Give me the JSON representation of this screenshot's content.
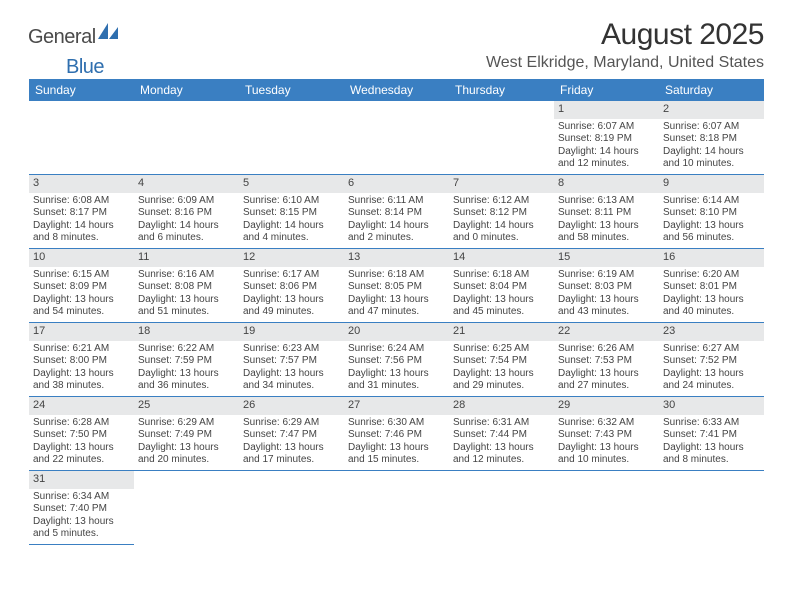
{
  "brand": {
    "part1": "General",
    "part2": "Blue"
  },
  "header": {
    "month_title": "August 2025",
    "location": "West Elkridge, Maryland, United States"
  },
  "palette": {
    "header_bg": "#3a7fc2",
    "header_text": "#ffffff",
    "daynum_bg": "#e7e8e9",
    "border": "#3a7fc2",
    "text": "#444444",
    "brand_gray": "#4a4a4a",
    "brand_blue": "#2f6faf"
  },
  "weekdays": [
    "Sunday",
    "Monday",
    "Tuesday",
    "Wednesday",
    "Thursday",
    "Friday",
    "Saturday"
  ],
  "calendar": {
    "type": "table",
    "columns": 7,
    "first_weekday_index": 5,
    "days": [
      {
        "n": 1,
        "sunrise": "6:07 AM",
        "sunset": "8:19 PM",
        "daylight": "14 hours and 12 minutes."
      },
      {
        "n": 2,
        "sunrise": "6:07 AM",
        "sunset": "8:18 PM",
        "daylight": "14 hours and 10 minutes."
      },
      {
        "n": 3,
        "sunrise": "6:08 AM",
        "sunset": "8:17 PM",
        "daylight": "14 hours and 8 minutes."
      },
      {
        "n": 4,
        "sunrise": "6:09 AM",
        "sunset": "8:16 PM",
        "daylight": "14 hours and 6 minutes."
      },
      {
        "n": 5,
        "sunrise": "6:10 AM",
        "sunset": "8:15 PM",
        "daylight": "14 hours and 4 minutes."
      },
      {
        "n": 6,
        "sunrise": "6:11 AM",
        "sunset": "8:14 PM",
        "daylight": "14 hours and 2 minutes."
      },
      {
        "n": 7,
        "sunrise": "6:12 AM",
        "sunset": "8:12 PM",
        "daylight": "14 hours and 0 minutes."
      },
      {
        "n": 8,
        "sunrise": "6:13 AM",
        "sunset": "8:11 PM",
        "daylight": "13 hours and 58 minutes."
      },
      {
        "n": 9,
        "sunrise": "6:14 AM",
        "sunset": "8:10 PM",
        "daylight": "13 hours and 56 minutes."
      },
      {
        "n": 10,
        "sunrise": "6:15 AM",
        "sunset": "8:09 PM",
        "daylight": "13 hours and 54 minutes."
      },
      {
        "n": 11,
        "sunrise": "6:16 AM",
        "sunset": "8:08 PM",
        "daylight": "13 hours and 51 minutes."
      },
      {
        "n": 12,
        "sunrise": "6:17 AM",
        "sunset": "8:06 PM",
        "daylight": "13 hours and 49 minutes."
      },
      {
        "n": 13,
        "sunrise": "6:18 AM",
        "sunset": "8:05 PM",
        "daylight": "13 hours and 47 minutes."
      },
      {
        "n": 14,
        "sunrise": "6:18 AM",
        "sunset": "8:04 PM",
        "daylight": "13 hours and 45 minutes."
      },
      {
        "n": 15,
        "sunrise": "6:19 AM",
        "sunset": "8:03 PM",
        "daylight": "13 hours and 43 minutes."
      },
      {
        "n": 16,
        "sunrise": "6:20 AM",
        "sunset": "8:01 PM",
        "daylight": "13 hours and 40 minutes."
      },
      {
        "n": 17,
        "sunrise": "6:21 AM",
        "sunset": "8:00 PM",
        "daylight": "13 hours and 38 minutes."
      },
      {
        "n": 18,
        "sunrise": "6:22 AM",
        "sunset": "7:59 PM",
        "daylight": "13 hours and 36 minutes."
      },
      {
        "n": 19,
        "sunrise": "6:23 AM",
        "sunset": "7:57 PM",
        "daylight": "13 hours and 34 minutes."
      },
      {
        "n": 20,
        "sunrise": "6:24 AM",
        "sunset": "7:56 PM",
        "daylight": "13 hours and 31 minutes."
      },
      {
        "n": 21,
        "sunrise": "6:25 AM",
        "sunset": "7:54 PM",
        "daylight": "13 hours and 29 minutes."
      },
      {
        "n": 22,
        "sunrise": "6:26 AM",
        "sunset": "7:53 PM",
        "daylight": "13 hours and 27 minutes."
      },
      {
        "n": 23,
        "sunrise": "6:27 AM",
        "sunset": "7:52 PM",
        "daylight": "13 hours and 24 minutes."
      },
      {
        "n": 24,
        "sunrise": "6:28 AM",
        "sunset": "7:50 PM",
        "daylight": "13 hours and 22 minutes."
      },
      {
        "n": 25,
        "sunrise": "6:29 AM",
        "sunset": "7:49 PM",
        "daylight": "13 hours and 20 minutes."
      },
      {
        "n": 26,
        "sunrise": "6:29 AM",
        "sunset": "7:47 PM",
        "daylight": "13 hours and 17 minutes."
      },
      {
        "n": 27,
        "sunrise": "6:30 AM",
        "sunset": "7:46 PM",
        "daylight": "13 hours and 15 minutes."
      },
      {
        "n": 28,
        "sunrise": "6:31 AM",
        "sunset": "7:44 PM",
        "daylight": "13 hours and 12 minutes."
      },
      {
        "n": 29,
        "sunrise": "6:32 AM",
        "sunset": "7:43 PM",
        "daylight": "13 hours and 10 minutes."
      },
      {
        "n": 30,
        "sunrise": "6:33 AM",
        "sunset": "7:41 PM",
        "daylight": "13 hours and 8 minutes."
      },
      {
        "n": 31,
        "sunrise": "6:34 AM",
        "sunset": "7:40 PM",
        "daylight": "13 hours and 5 minutes."
      }
    ]
  },
  "labels": {
    "sunrise": "Sunrise: ",
    "sunset": "Sunset: ",
    "daylight": "Daylight: "
  }
}
